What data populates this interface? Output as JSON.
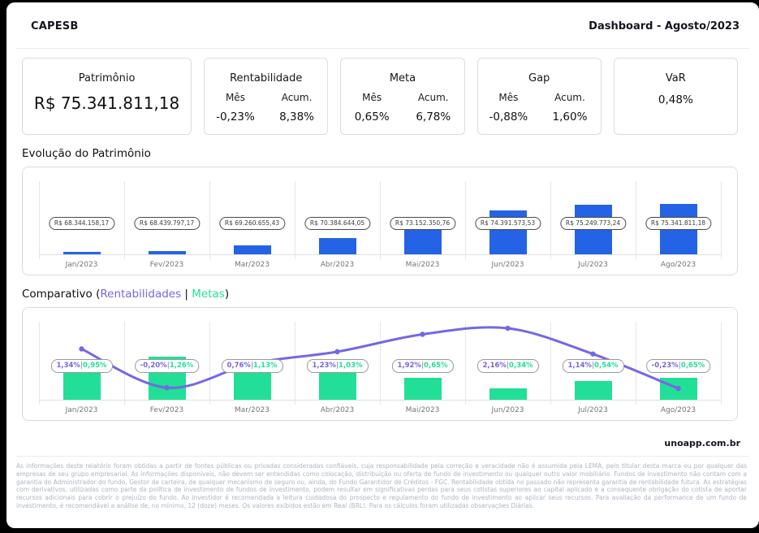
{
  "header": {
    "brand": "CAPESB",
    "title": "Dashboard - Agosto/2023"
  },
  "cards": {
    "patrimonio": {
      "title": "Patrimônio",
      "value": "R$ 75.341.811,18"
    },
    "rentabilidade": {
      "title": "Rentabilidade",
      "mes_label": "Mês",
      "acum_label": "Acum.",
      "mes": "-0,23%",
      "acum": "8,38%"
    },
    "meta": {
      "title": "Meta",
      "mes_label": "Mês",
      "acum_label": "Acum.",
      "mes": "0,65%",
      "acum": "6,78%"
    },
    "gap": {
      "title": "Gap",
      "mes_label": "Mês",
      "acum_label": "Acum.",
      "mes": "-0,88%",
      "acum": "1,60%"
    },
    "var": {
      "title": "VaR",
      "value": "0,48%"
    }
  },
  "sections": {
    "evolucao_title": "Evolução do Patrimônio",
    "comparativo_prefix": "Comparativo (",
    "comparativo_rent": "Rentabilidades",
    "comparativo_sep": " | ",
    "comparativo_meta": "Metas",
    "comparativo_suffix": ")"
  },
  "chart_data": [
    {
      "type": "bar",
      "title": "Evolução do Patrimônio",
      "categories": [
        "Jan/2023",
        "Fev/2023",
        "Mar/2023",
        "Abr/2023",
        "Mai/2023",
        "Jun/2023",
        "Jul/2023",
        "Ago/2023"
      ],
      "values": [
        68344158.17,
        68439797.17,
        69260655.43,
        70384644.05,
        73152350.76,
        74391573.53,
        75249773.24,
        75341811.18
      ],
      "labels": [
        "R$ 68.344.158,17",
        "R$ 68.439.797,17",
        "R$ 69.260.655,43",
        "R$ 70.384.644,05",
        "R$ 73.152.350,76",
        "R$ 74.391.573,53",
        "R$ 75.249.773,24",
        "R$ 75.341.811,18"
      ],
      "bar_color": "#2463e6",
      "ylim": [
        68000000,
        75341811.18
      ],
      "grid": true,
      "legend": "none"
    },
    {
      "type": "bar+line",
      "title": "Comparativo (Rentabilidades | Metas)",
      "categories": [
        "Jan/2023",
        "Fev/2023",
        "Mar/2023",
        "Abr/2023",
        "Mai/2023",
        "Jun/2023",
        "Jul/2023",
        "Ago/2023"
      ],
      "label_separator": "|",
      "series": [
        {
          "name": "Rentabilidades",
          "type": "line",
          "color": "#7468e4",
          "values": [
            1.34,
            -0.2,
            0.76,
            1.23,
            1.92,
            2.16,
            1.14,
            -0.23
          ],
          "labels": [
            "1,34%",
            "-0,20%",
            "0,76%",
            "1,23%",
            "1,92%",
            "2,16%",
            "1,14%",
            "-0,23%"
          ]
        },
        {
          "name": "Metas",
          "type": "bar",
          "color": "#21df96",
          "values": [
            0.95,
            1.26,
            1.13,
            1.03,
            0.65,
            0.34,
            0.54,
            0.65
          ],
          "labels": [
            "0,95%",
            "1,26%",
            "1,13%",
            "1,03%",
            "0,65%",
            "0,34%",
            "0,54%",
            "0,65%"
          ]
        }
      ],
      "ylim": [
        -0.5,
        2.5
      ],
      "grid": true,
      "legend": "in-title"
    }
  ],
  "colors": {
    "bar_blue": "#2463e6",
    "line_purple": "#7468e4",
    "bar_green": "#21df96",
    "separator_gray": "#9aa0a6"
  },
  "footer": {
    "site": "unoapp.com.br",
    "disclaimer": "As informações deste relatório foram obtidas a partir de fontes públicas ou privadas consideradas confiáveis, cuja responsabilidade pela correção e veracidade não é assumida pela LEMA, pelo titular desta marca ou por qualquer das empresas de seu grupo empresarial. As informações disponíveis, não devem ser entendidas como colocação, distribuição ou oferta de fundo de investimento ou qualquer outro valor mobiliário. Fundos de investimento não contam com a garantia do Administrador do fundo, Gestor da carteira, de qualquer mecanismo de seguro ou, ainda, do Fundo Garantidor de Créditos - FGC. Rentabilidade obtida no passado não representa garantia de rentabilidade futura. As estratégias com derivativos, utilizadas como parte da política de investimento de fundos de investimento, podem resultar em significativas perdas para seus cotistas superiores ao capital aplicado e a consequente obrigação do cotista de aportar recursos adicionais para cobrir o prejuízo do fundo. Ao investidor é recomendada a leitura cuidadosa do prospecto e regulamento do fundo de investimento ao aplicar seus recursos. Para avaliação da performance de um fundo de investimento, é recomendável a análise de, no mínimo, 12 (doze) meses. Os valores exibidos estão em Real (BRL). Para os cálculos foram utilizadas observações Diárias."
  }
}
